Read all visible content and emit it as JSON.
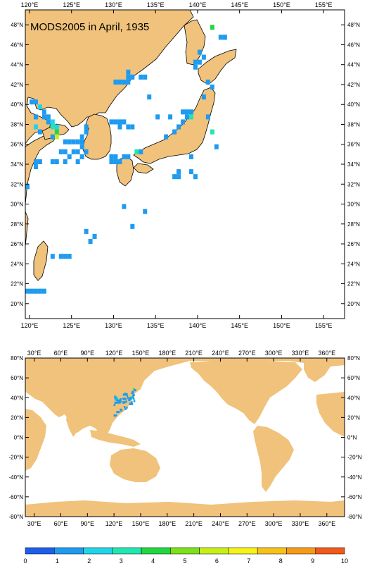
{
  "title": "MODS2005 in April, 1935",
  "colors": {
    "land": "#f0c27b",
    "ocean": "#ffffff",
    "frame": "#000000"
  },
  "regional_map": {
    "lon_range": [
      119.5,
      157.5
    ],
    "lat_range": [
      18.5,
      49.5
    ],
    "x_ticks": [
      "120°E",
      "125°E",
      "130°E",
      "135°E",
      "140°E",
      "145°E",
      "150°E",
      "155°E"
    ],
    "x_tick_values": [
      120,
      125,
      130,
      135,
      140,
      145,
      150,
      155
    ],
    "y_ticks": [
      "20°N",
      "22°N",
      "24°N",
      "26°N",
      "28°N",
      "30°N",
      "32°N",
      "34°N",
      "36°N",
      "38°N",
      "40°N",
      "42°N",
      "44°N",
      "46°N",
      "48°N"
    ],
    "y_tick_values": [
      20,
      22,
      24,
      26,
      28,
      30,
      32,
      34,
      36,
      38,
      40,
      42,
      44,
      46,
      48
    ]
  },
  "global_map": {
    "lon_range": [
      20,
      380
    ],
    "lat_range": [
      -80,
      80
    ],
    "x_ticks": [
      "30°E",
      "60°E",
      "90°E",
      "120°E",
      "150°E",
      "180°E",
      "210°E",
      "240°E",
      "270°E",
      "300°E",
      "330°E",
      "360°E"
    ],
    "x_tick_values": [
      30,
      60,
      90,
      120,
      150,
      180,
      210,
      240,
      270,
      300,
      330,
      360
    ],
    "y_ticks": [
      "80°N",
      "60°N",
      "40°N",
      "20°N",
      "0°N",
      "-20°N",
      "-40°N",
      "-60°N",
      "-80°N"
    ],
    "y_tick_values": [
      80,
      60,
      40,
      20,
      0,
      -20,
      -40,
      -60,
      -80
    ]
  },
  "colorbar": {
    "labels": [
      "0",
      "1",
      "2",
      "3",
      "4",
      "5",
      "6",
      "7",
      "8",
      "9",
      "10"
    ],
    "colors": [
      "#1e5ee8",
      "#1e9bf0",
      "#22d4e6",
      "#22e6b0",
      "#22d640",
      "#7de01c",
      "#c8ee1a",
      "#f5f21a",
      "#f5c21a",
      "#f59a1a",
      "#f05a1a"
    ]
  },
  "observations": {
    "legend_note": "cells colored by observation count",
    "cells": [
      [
        120,
        40,
        1
      ],
      [
        120.5,
        40,
        1
      ],
      [
        121,
        39.5,
        2
      ],
      [
        121.5,
        39,
        1
      ],
      [
        121.5,
        38.5,
        1
      ],
      [
        122,
        38.5,
        1
      ],
      [
        122,
        38,
        1
      ],
      [
        122.5,
        38,
        2
      ],
      [
        122.5,
        37.5,
        3
      ],
      [
        123,
        37,
        4
      ],
      [
        123,
        36.5,
        6
      ],
      [
        123,
        37.5,
        2
      ],
      [
        122.5,
        36.5,
        1
      ],
      [
        121,
        37,
        1
      ],
      [
        120.5,
        37.5,
        2
      ],
      [
        120.5,
        38.5,
        1
      ],
      [
        124,
        36,
        1
      ],
      [
        124.5,
        36,
        1
      ],
      [
        125,
        36,
        1
      ],
      [
        125.5,
        36,
        1
      ],
      [
        126,
        36,
        1
      ],
      [
        126,
        36.5,
        1
      ],
      [
        126,
        35.5,
        1
      ],
      [
        125.5,
        35,
        1
      ],
      [
        125,
        35,
        1
      ],
      [
        124,
        35,
        1
      ],
      [
        123.5,
        35,
        1
      ],
      [
        124.5,
        34.5,
        1
      ],
      [
        125.5,
        34,
        1
      ],
      [
        126,
        34.5,
        1
      ],
      [
        126.5,
        35,
        1
      ],
      [
        126.5,
        37,
        1
      ],
      [
        126.5,
        37.5,
        1
      ],
      [
        124,
        34,
        1
      ],
      [
        120.5,
        34,
        1
      ],
      [
        121,
        34,
        1
      ],
      [
        122.5,
        34,
        1
      ],
      [
        123,
        34,
        1
      ],
      [
        129.5,
        34.5,
        1
      ],
      [
        130,
        34.5,
        1
      ],
      [
        130.5,
        34,
        1
      ],
      [
        131,
        34.5,
        1
      ],
      [
        131.5,
        34.5,
        1
      ],
      [
        129.5,
        34,
        1
      ],
      [
        130,
        34,
        1
      ],
      [
        132.5,
        35,
        3
      ],
      [
        133,
        35,
        1
      ],
      [
        129.5,
        38,
        1
      ],
      [
        130,
        38,
        1
      ],
      [
        130.5,
        38,
        1
      ],
      [
        131,
        38,
        1
      ],
      [
        131.5,
        37.5,
        1
      ],
      [
        132,
        37.5,
        1
      ],
      [
        130.5,
        37.5,
        1
      ],
      [
        130.5,
        42,
        1
      ],
      [
        131,
        42,
        1
      ],
      [
        131.5,
        42,
        1
      ],
      [
        130,
        42,
        1
      ],
      [
        131.5,
        42.5,
        1
      ],
      [
        131.5,
        43,
        1
      ],
      [
        132,
        42.5,
        1
      ],
      [
        133,
        42.5,
        1
      ],
      [
        133.5,
        42.5,
        1
      ],
      [
        134,
        40.5,
        1
      ],
      [
        135,
        38.5,
        1
      ],
      [
        136.5,
        38.5,
        1
      ],
      [
        136,
        36.5,
        1
      ],
      [
        137,
        37,
        1
      ],
      [
        137.5,
        37.5,
        1
      ],
      [
        138,
        38,
        1
      ],
      [
        138.5,
        38.5,
        1
      ],
      [
        138.5,
        39,
        1
      ],
      [
        139,
        39,
        1
      ],
      [
        139,
        38.5,
        3
      ],
      [
        138,
        39,
        1
      ],
      [
        139.5,
        43.5,
        1
      ],
      [
        140.5,
        44.5,
        1
      ],
      [
        140,
        44,
        1
      ],
      [
        139.5,
        44,
        1
      ],
      [
        140,
        45,
        1
      ],
      [
        141.5,
        47.5,
        4
      ],
      [
        142.5,
        46.5,
        1
      ],
      [
        143,
        46.5,
        1
      ],
      [
        143,
        46.5,
        1
      ],
      [
        142,
        35.5,
        1
      ],
      [
        139,
        34.5,
        1
      ],
      [
        139,
        33,
        1
      ],
      [
        139.5,
        32.5,
        1
      ],
      [
        137,
        32.5,
        1
      ],
      [
        137.5,
        32.5,
        1
      ],
      [
        137.5,
        33,
        1
      ],
      [
        141,
        42,
        1
      ],
      [
        141.5,
        41.5,
        1
      ],
      [
        140.5,
        40.5,
        1
      ],
      [
        141.5,
        37,
        3
      ],
      [
        141,
        38.5,
        1
      ],
      [
        120.5,
        33.5,
        1
      ],
      [
        119.5,
        31.5,
        1
      ],
      [
        127.5,
        26.5,
        1
      ],
      [
        127,
        26,
        1
      ],
      [
        126.5,
        27,
        1
      ],
      [
        124.5,
        24.5,
        1
      ],
      [
        124,
        24.5,
        1
      ],
      [
        123.5,
        24.5,
        1
      ],
      [
        122.5,
        24.5,
        1
      ],
      [
        119.5,
        21,
        1
      ],
      [
        120,
        21,
        1
      ],
      [
        120.5,
        21,
        1
      ],
      [
        121,
        21,
        1
      ],
      [
        121.5,
        21,
        1
      ],
      [
        131,
        29.5,
        1
      ],
      [
        132,
        27.5,
        1
      ],
      [
        133.5,
        29,
        1
      ]
    ]
  }
}
